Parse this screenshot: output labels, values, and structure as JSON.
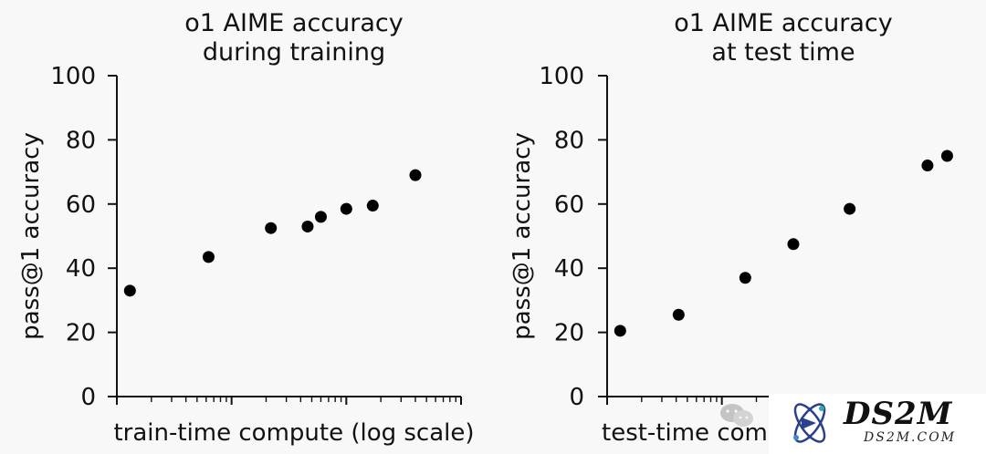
{
  "chart_data": [
    {
      "type": "scatter",
      "title": [
        "o1 AIME accuracy",
        "during training"
      ],
      "xlabel": "train-time compute (log scale)",
      "ylabel": "pass@1 accuracy",
      "ylim": [
        0,
        100
      ],
      "yticks": [
        0,
        20,
        40,
        60,
        80,
        100
      ],
      "xscale": "log",
      "xlim": [
        1,
        1000
      ],
      "xticks": [
        1,
        2,
        3,
        4,
        5,
        6,
        7,
        8,
        9,
        10,
        20,
        30,
        40,
        50,
        60,
        70,
        80,
        90,
        100,
        200,
        300,
        400,
        500,
        600,
        700,
        800,
        900,
        1000
      ],
      "series": [
        {
          "x": [
            1.3,
            6.3,
            22,
            46,
            60,
            100,
            170,
            400
          ],
          "y": [
            33,
            43.5,
            52.5,
            53,
            56,
            58.5,
            59.5,
            69
          ]
        }
      ]
    },
    {
      "type": "scatter",
      "title": [
        "o1 AIME accuracy",
        "at test time"
      ],
      "xlabel": "test-time compute",
      "ylabel": "pass@1 accuracy",
      "ylim": [
        0,
        100
      ],
      "yticks": [
        0,
        20,
        40,
        60,
        80,
        100
      ],
      "xscale": "log",
      "xlim": [
        1,
        1000
      ],
      "xticks": [
        1,
        2,
        3,
        4,
        5,
        6,
        7,
        8,
        9,
        10,
        20,
        30,
        40,
        50,
        60,
        70,
        80,
        90,
        100,
        200,
        300,
        400,
        500,
        600,
        700,
        800,
        900,
        1000
      ],
      "series": [
        {
          "x": [
            1.3,
            4.2,
            16,
            42,
            130,
            620,
            920
          ],
          "y": [
            20.5,
            25.5,
            37,
            47.5,
            58.5,
            72,
            75
          ]
        }
      ]
    }
  ],
  "colors": {
    "marker": "#000000",
    "axis": "#111111",
    "background": "#f8f8f8"
  },
  "watermark": {
    "wechat_icon": "wechat-icon",
    "logo_icon": "atom-logo-icon",
    "title": "DS2M",
    "subtitle": "DS2M.COM"
  }
}
